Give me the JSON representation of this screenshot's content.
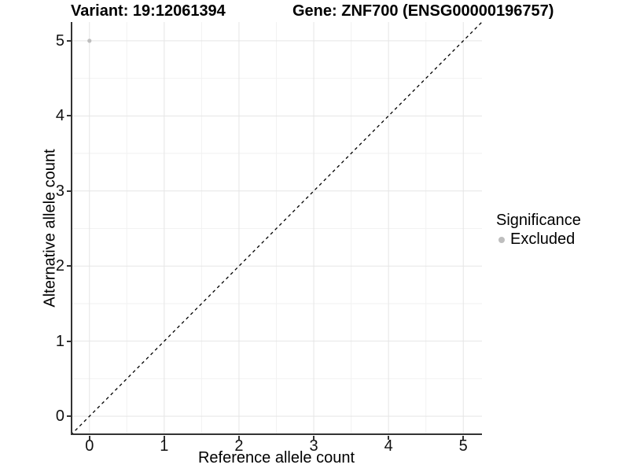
{
  "titles": {
    "variant": "Variant: 19:12061394",
    "gene": "Gene: ZNF700 (ENSG00000196757)"
  },
  "chart_data": {
    "type": "scatter",
    "title": "Variant: 19:12061394   Gene: ZNF700 (ENSG00000196757)",
    "xlabel": "Reference allele count",
    "ylabel": "Alternative allele count",
    "xlim": [
      0,
      5
    ],
    "ylim": [
      0,
      5
    ],
    "x_ticks": [
      0,
      1,
      2,
      3,
      4,
      5
    ],
    "y_ticks": [
      0,
      1,
      2,
      3,
      4,
      5
    ],
    "expansion_units": 0.25,
    "grid": true,
    "grid_minor": true,
    "series": [
      {
        "name": "Excluded",
        "color": "#bebebe",
        "marker": "circle",
        "points": [
          {
            "x": 0,
            "y": 5
          }
        ]
      }
    ],
    "reference_line": {
      "type": "identity",
      "style": "dashed",
      "color": "#000000",
      "from": {
        "x": 0,
        "y": 0
      },
      "to": {
        "x": 5,
        "y": 5
      }
    },
    "legend": {
      "title": "Significance",
      "position": "right",
      "entries": [
        {
          "label": "Excluded",
          "color": "#bebebe",
          "marker": "circle"
        }
      ]
    }
  },
  "colors": {
    "background": "#ffffff",
    "grid_major": "#e5e5e5",
    "grid_minor": "#f2f2f2",
    "axis_line": "#333333",
    "tick_text": "#111111",
    "title_text": "#000000"
  }
}
